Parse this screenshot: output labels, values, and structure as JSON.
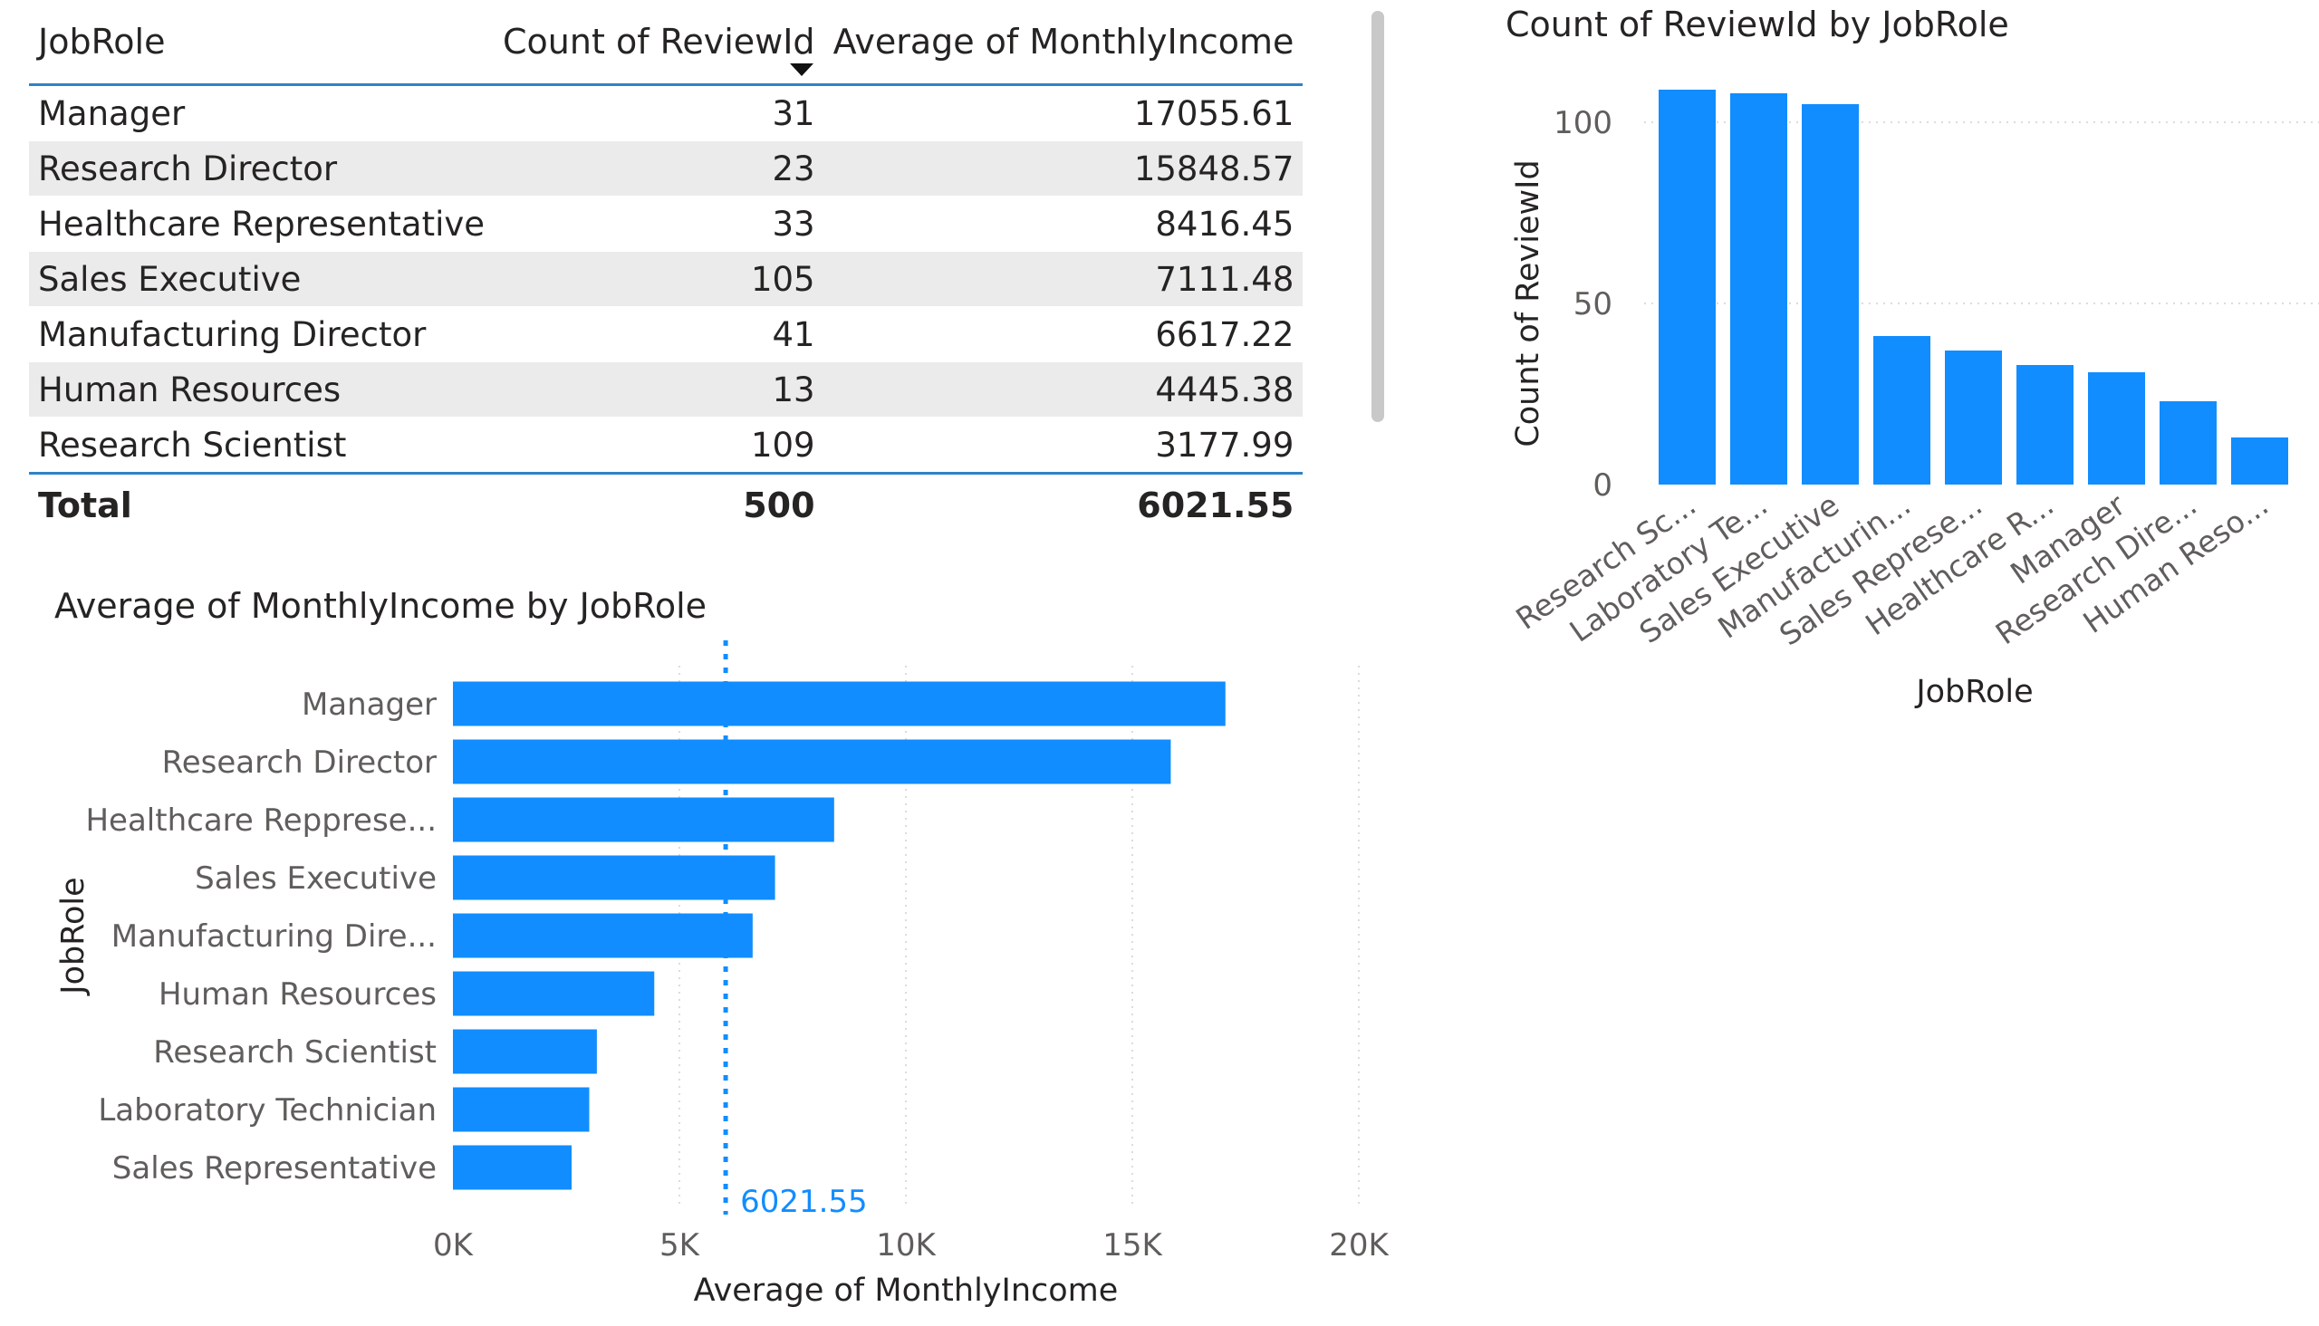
{
  "table": {
    "headers": [
      "JobRole",
      "Count of ReviewId",
      "Average of MonthlyIncome"
    ],
    "rows": [
      [
        "Manager",
        "31",
        "17055.61"
      ],
      [
        "Research Director",
        "23",
        "15848.57"
      ],
      [
        "Healthcare Representative",
        "33",
        "8416.45"
      ],
      [
        "Sales Executive",
        "105",
        "7111.48"
      ],
      [
        "Manufacturing Director",
        "41",
        "6617.22"
      ],
      [
        "Human Resources",
        "13",
        "4445.38"
      ],
      [
        "Research Scientist",
        "109",
        "3177.99"
      ]
    ],
    "total": [
      "Total",
      "500",
      "6021.55"
    ],
    "sort_column": "Average of MonthlyIncome",
    "sort_order": "descending"
  },
  "chart_data": [
    {
      "id": "avg-income",
      "type": "bar",
      "orientation": "horizontal",
      "title": "Average of MonthlyIncome by JobRole",
      "xlabel": "Average of MonthlyIncome",
      "ylabel": "JobRole",
      "categories": [
        "Manager",
        "Research Director",
        "Healthcare Repprese...",
        "Sales Executive",
        "Manufacturing Dire...",
        "Human Resources",
        "Research Scientist",
        "Laboratory Technician",
        "Sales Representative"
      ],
      "values": [
        17055.61,
        15848.57,
        8416.45,
        7111.48,
        6617.22,
        4445.38,
        3177.99,
        3010,
        2620
      ],
      "xlim": [
        0,
        20000
      ],
      "xticks": [
        0,
        5000,
        10000,
        15000,
        20000
      ],
      "xtick_labels": [
        "0K",
        "5K",
        "10K",
        "15K",
        "20K"
      ],
      "reference_line": {
        "value": 6021.55,
        "label": "6021.55",
        "style": "dotted"
      },
      "grid": true,
      "color": "#118DFF"
    },
    {
      "id": "count-review",
      "type": "bar",
      "orientation": "vertical",
      "title": "Count of ReviewId by JobRole",
      "xlabel": "JobRole",
      "ylabel": "Count of ReviewId",
      "categories": [
        "Research Sc...",
        "Laboratory Te...",
        "Sales Executive",
        "Manufacturin...",
        "Sales Represe...",
        "Healthcare R...",
        "Manager",
        "Research Dire...",
        "Human Reso..."
      ],
      "values": [
        109,
        108,
        105,
        41,
        37,
        33,
        31,
        23,
        13
      ],
      "ylim": [
        0,
        110
      ],
      "yticks": [
        0,
        50,
        100
      ],
      "ytick_labels": [
        "0",
        "50",
        "100"
      ],
      "grid": true,
      "color": "#118DFF"
    }
  ]
}
